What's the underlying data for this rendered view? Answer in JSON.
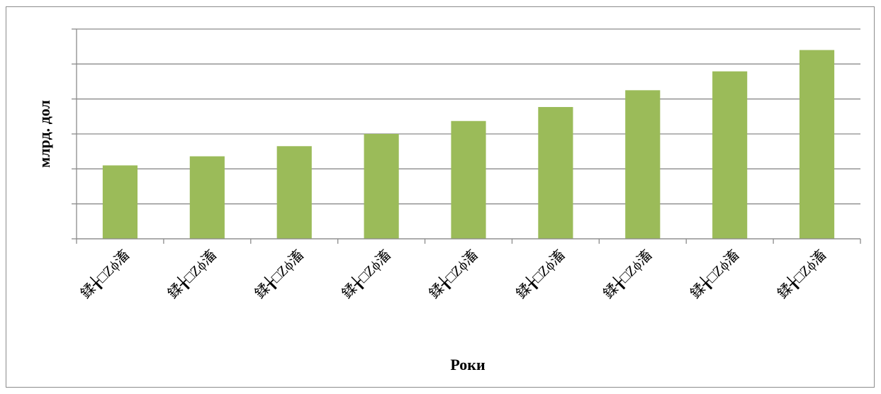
{
  "chart_data": {
    "type": "bar",
    "categories": [
      "鍒╁□Ζϕ滀",
      "鍒╁□Ζϕ滀",
      "鍒╁□Ζϕ滀",
      "鍒╁□Ζϕ滀",
      "鍒╁□Ζϕ滀",
      "鍒╁□Ζϕ滀",
      "鍒╁□Ζϕ滀",
      "鍒╁□Ζϕ滀",
      "鍒╁□Ζϕ滀"
    ],
    "values": [
      2.1,
      2.36,
      2.65,
      3.0,
      3.37,
      3.77,
      4.25,
      4.79,
      5.4
    ],
    "xlabel": "Роки",
    "ylabel": "млрд. дол",
    "ylim": [
      0,
      6
    ],
    "grid": true,
    "bar_color": "#9bbb59",
    "gridline_color": "#8c8c8c",
    "show_y_tick_labels": false
  }
}
